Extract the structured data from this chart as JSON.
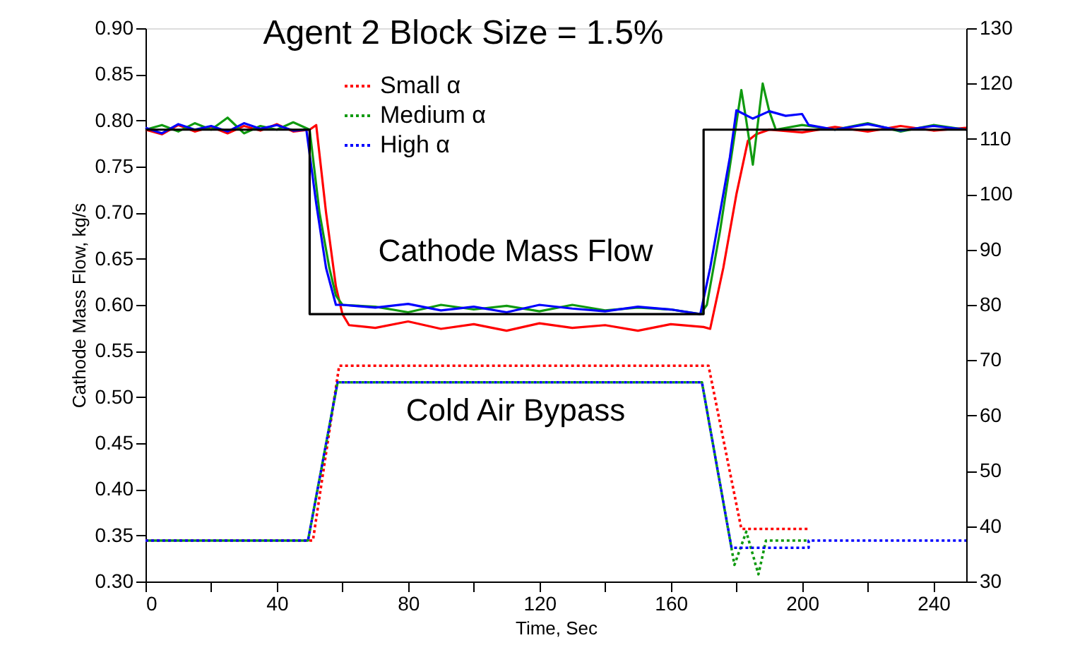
{
  "chart_data": {
    "type": "line",
    "title": "Agent 2 Block Size = 1.5%",
    "xlabel": "Time, Sec",
    "ylabel": "Cathode Mass Flow, kg/s",
    "annotations": [
      "Cathode Mass Flow",
      "Cold Air Bypass"
    ],
    "series": [
      {
        "color": "#ff0000",
        "line_style": "solid",
        "x": [
          0,
          5,
          10,
          15,
          20,
          25,
          30,
          35,
          40,
          45,
          50,
          52,
          55,
          58,
          60,
          62,
          70,
          80,
          90,
          100,
          110,
          120,
          130,
          140,
          150,
          160,
          170,
          172,
          176,
          180,
          183.5,
          186,
          190,
          200,
          210,
          220,
          230,
          240,
          250
        ],
        "values": [
          0.79,
          0.785,
          0.795,
          0.788,
          0.793,
          0.786,
          0.794,
          0.789,
          0.796,
          0.788,
          0.79,
          0.795,
          0.7,
          0.62,
          0.59,
          0.578,
          0.575,
          0.582,
          0.574,
          0.579,
          0.572,
          0.58,
          0.575,
          0.578,
          0.572,
          0.579,
          0.576,
          0.574,
          0.64,
          0.72,
          0.778,
          0.785,
          0.79,
          0.787,
          0.793,
          0.788,
          0.794,
          0.789,
          0.792
        ]
      },
      {
        "color": "#109a10",
        "line_style": "solid",
        "x": [
          0,
          5,
          10,
          15,
          20,
          25,
          30,
          35,
          40,
          45,
          50,
          53,
          56,
          58,
          60,
          70,
          80,
          90,
          100,
          110,
          120,
          130,
          140,
          150,
          160,
          169,
          171,
          175,
          178,
          181.5,
          183,
          185,
          188,
          190,
          192,
          200,
          210,
          220,
          230,
          240,
          250
        ],
        "values": [
          0.79,
          0.795,
          0.788,
          0.797,
          0.79,
          0.803,
          0.786,
          0.794,
          0.79,
          0.798,
          0.79,
          0.7,
          0.64,
          0.61,
          0.6,
          0.598,
          0.592,
          0.6,
          0.595,
          0.599,
          0.593,
          0.6,
          0.594,
          0.597,
          0.595,
          0.59,
          0.6,
          0.68,
          0.75,
          0.833,
          0.8,
          0.752,
          0.84,
          0.81,
          0.79,
          0.795,
          0.79,
          0.797,
          0.788,
          0.795,
          0.79
        ]
      },
      {
        "color": "#0000ff",
        "line_style": "solid",
        "x": [
          0,
          5,
          10,
          15,
          20,
          25,
          30,
          35,
          40,
          45,
          49,
          52,
          55,
          58,
          60,
          70,
          80,
          90,
          100,
          110,
          120,
          130,
          140,
          150,
          160,
          169,
          172,
          175,
          178,
          180,
          185,
          190,
          195,
          200,
          202,
          210,
          220,
          230,
          240,
          250
        ],
        "values": [
          0.792,
          0.786,
          0.796,
          0.79,
          0.794,
          0.788,
          0.797,
          0.791,
          0.795,
          0.789,
          0.79,
          0.71,
          0.64,
          0.6,
          0.6,
          0.597,
          0.601,
          0.594,
          0.598,
          0.592,
          0.6,
          0.596,
          0.593,
          0.598,
          0.595,
          0.59,
          0.64,
          0.7,
          0.76,
          0.811,
          0.802,
          0.81,
          0.805,
          0.807,
          0.795,
          0.79,
          0.796,
          0.789,
          0.794,
          0.79
        ]
      },
      {
        "color": "#000000",
        "line_style": "solid",
        "x": [
          0,
          50,
          50,
          170,
          170,
          250
        ],
        "values": [
          0.79,
          0.79,
          0.59,
          0.59,
          0.79,
          0.79
        ]
      },
      {
        "name": "Small α",
        "color": "#ff0000",
        "line_style": "dotted",
        "axis": "y2",
        "x": [
          0,
          51,
          59,
          171.5,
          181.5,
          202
        ],
        "values": [
          37.4,
          37.4,
          69,
          69,
          39.5,
          39.5
        ]
      },
      {
        "name": "Medium α",
        "color": "#109a10",
        "line_style": "dotted",
        "axis": "y2",
        "x": [
          0,
          49.5,
          58.5,
          169.5,
          179.4,
          183,
          186.7,
          189,
          202
        ],
        "values": [
          37.4,
          37.4,
          66,
          66,
          33,
          39,
          31.3,
          37.4,
          37.4
        ]
      },
      {
        "name": "High α",
        "color": "#0000ff",
        "line_style": "dotted",
        "axis": "y2",
        "x": [
          0,
          49.5,
          58.5,
          169.5,
          178.5,
          202,
          202,
          250
        ],
        "values": [
          37.4,
          37.4,
          66,
          66,
          36.1,
          36.1,
          37.4,
          37.4
        ]
      }
    ],
    "xlim": [
      0,
      250
    ],
    "xticks": [
      0,
      {
        "value": 20,
        "label": null
      },
      40,
      {
        "value": 60,
        "label": null
      },
      80,
      {
        "value": 100,
        "label": null
      },
      120,
      {
        "value": 140,
        "label": null
      },
      160,
      {
        "value": 180,
        "label": null
      },
      200,
      {
        "value": 220,
        "label": null
      },
      240
    ],
    "ylim": [
      0.3,
      0.9
    ],
    "yticks": [
      {
        "value": 0.3,
        "label": "0.30"
      },
      {
        "value": 0.35,
        "label": "0.35"
      },
      {
        "value": 0.4,
        "label": "0.40"
      },
      {
        "value": 0.45,
        "label": "0.45"
      },
      {
        "value": 0.5,
        "label": "0.50"
      },
      {
        "value": 0.55,
        "label": "0.55"
      },
      {
        "value": 0.6,
        "label": "0.60"
      },
      {
        "value": 0.65,
        "label": "0.65"
      },
      {
        "value": 0.7,
        "label": "0.70"
      },
      {
        "value": 0.75,
        "label": "0.75"
      },
      {
        "value": 0.8,
        "label": "0.80"
      },
      {
        "value": 0.85,
        "label": "0.85"
      },
      {
        "value": 0.9,
        "label": "0.90"
      }
    ],
    "y2lim": [
      30,
      130
    ],
    "y2ticks": [
      30,
      40,
      50,
      60,
      70,
      80,
      90,
      100,
      110,
      120,
      130
    ],
    "grid": false,
    "legend": "top",
    "marker": "none"
  }
}
